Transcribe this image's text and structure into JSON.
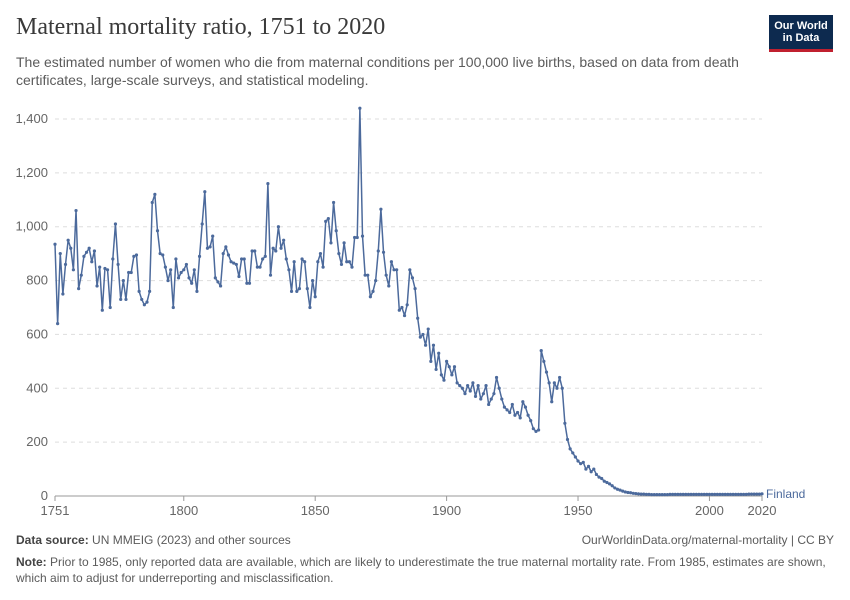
{
  "header": {
    "title": "Maternal mortality ratio, 1751 to 2020",
    "subtitle": "The estimated number of women who die from maternal conditions per 100,000 live births, based on data from death certificates, large-scale surveys, and statistical modeling."
  },
  "logo": {
    "line1": "Our World",
    "line2": "in Data"
  },
  "footer": {
    "source_label": "Data source:",
    "source_text": " UN MMEIG (2023) and other sources",
    "credit": "OurWorldinData.org/maternal-mortality | CC BY",
    "note_label": "Note:",
    "note_text": " Prior to 1985, only reported data are available, which are likely to underestimate the true maternal mortality rate. From 1985, estimates are shown, which aim to adjust for underreporting and misclassification."
  },
  "colors": {
    "series": "#4c6a9c",
    "grid": "#dddddd",
    "axis": "#999999"
  },
  "chart_data": {
    "type": "line",
    "title": "Maternal mortality ratio, 1751 to 2020",
    "xlim": [
      1751,
      2020
    ],
    "ylim": [
      0,
      1400
    ],
    "x_ticks": [
      1751,
      1800,
      1850,
      1900,
      1950,
      2000,
      2020
    ],
    "x_tick_labels": [
      "1751",
      "1800",
      "1850",
      "1900",
      "1950",
      "2000",
      "2020"
    ],
    "y_ticks": [
      0,
      200,
      400,
      600,
      800,
      1000,
      1200,
      1400
    ],
    "y_tick_labels": [
      "0",
      "200",
      "400",
      "600",
      "800",
      "1,000",
      "1,200",
      "1,400"
    ],
    "grid": "horizontal dashed",
    "series": [
      {
        "name": "Finland",
        "color": "#4c6a9c",
        "points": [
          [
            1751,
            935
          ],
          [
            1752,
            640
          ],
          [
            1753,
            900
          ],
          [
            1754,
            750
          ],
          [
            1755,
            860
          ],
          [
            1756,
            950
          ],
          [
            1757,
            920
          ],
          [
            1758,
            840
          ],
          [
            1759,
            1060
          ],
          [
            1760,
            770
          ],
          [
            1761,
            820
          ],
          [
            1762,
            890
          ],
          [
            1763,
            905
          ],
          [
            1764,
            920
          ],
          [
            1765,
            870
          ],
          [
            1766,
            910
          ],
          [
            1767,
            780
          ],
          [
            1768,
            850
          ],
          [
            1769,
            690
          ],
          [
            1770,
            845
          ],
          [
            1771,
            840
          ],
          [
            1772,
            700
          ],
          [
            1773,
            880
          ],
          [
            1774,
            1010
          ],
          [
            1775,
            860
          ],
          [
            1776,
            730
          ],
          [
            1777,
            800
          ],
          [
            1778,
            730
          ],
          [
            1779,
            830
          ],
          [
            1780,
            830
          ],
          [
            1781,
            890
          ],
          [
            1782,
            895
          ],
          [
            1783,
            760
          ],
          [
            1784,
            730
          ],
          [
            1785,
            710
          ],
          [
            1786,
            720
          ],
          [
            1787,
            760
          ],
          [
            1788,
            1090
          ],
          [
            1789,
            1120
          ],
          [
            1790,
            985
          ],
          [
            1791,
            900
          ],
          [
            1792,
            895
          ],
          [
            1793,
            850
          ],
          [
            1794,
            800
          ],
          [
            1795,
            840
          ],
          [
            1796,
            700
          ],
          [
            1797,
            880
          ],
          [
            1798,
            810
          ],
          [
            1799,
            830
          ],
          [
            1800,
            840
          ],
          [
            1801,
            860
          ],
          [
            1802,
            810
          ],
          [
            1803,
            790
          ],
          [
            1804,
            840
          ],
          [
            1805,
            760
          ],
          [
            1806,
            890
          ],
          [
            1807,
            1010
          ],
          [
            1808,
            1130
          ],
          [
            1809,
            920
          ],
          [
            1810,
            925
          ],
          [
            1811,
            965
          ],
          [
            1812,
            810
          ],
          [
            1813,
            795
          ],
          [
            1814,
            780
          ],
          [
            1815,
            900
          ],
          [
            1816,
            925
          ],
          [
            1817,
            895
          ],
          [
            1818,
            870
          ],
          [
            1819,
            865
          ],
          [
            1820,
            860
          ],
          [
            1821,
            815
          ],
          [
            1822,
            880
          ],
          [
            1823,
            880
          ],
          [
            1824,
            790
          ],
          [
            1825,
            790
          ],
          [
            1826,
            910
          ],
          [
            1827,
            910
          ],
          [
            1828,
            850
          ],
          [
            1829,
            850
          ],
          [
            1830,
            880
          ],
          [
            1831,
            890
          ],
          [
            1832,
            1160
          ],
          [
            1833,
            820
          ],
          [
            1834,
            920
          ],
          [
            1835,
            910
          ],
          [
            1836,
            1000
          ],
          [
            1837,
            920
          ],
          [
            1838,
            950
          ],
          [
            1839,
            880
          ],
          [
            1840,
            840
          ],
          [
            1841,
            760
          ],
          [
            1842,
            870
          ],
          [
            1843,
            760
          ],
          [
            1844,
            770
          ],
          [
            1845,
            880
          ],
          [
            1846,
            870
          ],
          [
            1847,
            770
          ],
          [
            1848,
            700
          ],
          [
            1849,
            800
          ],
          [
            1850,
            740
          ],
          [
            1851,
            870
          ],
          [
            1852,
            900
          ],
          [
            1853,
            850
          ],
          [
            1854,
            1020
          ],
          [
            1855,
            1030
          ],
          [
            1856,
            940
          ],
          [
            1857,
            1090
          ],
          [
            1858,
            985
          ],
          [
            1859,
            900
          ],
          [
            1860,
            860
          ],
          [
            1861,
            940
          ],
          [
            1862,
            870
          ],
          [
            1863,
            870
          ],
          [
            1864,
            850
          ],
          [
            1865,
            960
          ],
          [
            1866,
            960
          ],
          [
            1867,
            1440
          ],
          [
            1868,
            965
          ],
          [
            1869,
            820
          ],
          [
            1870,
            820
          ],
          [
            1871,
            740
          ],
          [
            1872,
            760
          ],
          [
            1873,
            800
          ],
          [
            1874,
            910
          ],
          [
            1875,
            1065
          ],
          [
            1876,
            905
          ],
          [
            1877,
            820
          ],
          [
            1878,
            780
          ],
          [
            1879,
            870
          ],
          [
            1880,
            840
          ],
          [
            1881,
            840
          ],
          [
            1882,
            690
          ],
          [
            1883,
            700
          ],
          [
            1884,
            670
          ],
          [
            1885,
            710
          ],
          [
            1886,
            840
          ],
          [
            1887,
            810
          ],
          [
            1888,
            770
          ],
          [
            1889,
            660
          ],
          [
            1890,
            590
          ],
          [
            1891,
            600
          ],
          [
            1892,
            560
          ],
          [
            1893,
            620
          ],
          [
            1894,
            500
          ],
          [
            1895,
            560
          ],
          [
            1896,
            470
          ],
          [
            1897,
            530
          ],
          [
            1898,
            450
          ],
          [
            1899,
            430
          ],
          [
            1900,
            500
          ],
          [
            1901,
            480
          ],
          [
            1902,
            450
          ],
          [
            1903,
            480
          ],
          [
            1904,
            420
          ],
          [
            1905,
            410
          ],
          [
            1906,
            400
          ],
          [
            1907,
            380
          ],
          [
            1908,
            410
          ],
          [
            1909,
            390
          ],
          [
            1910,
            420
          ],
          [
            1911,
            370
          ],
          [
            1912,
            410
          ],
          [
            1913,
            360
          ],
          [
            1914,
            380
          ],
          [
            1915,
            410
          ],
          [
            1916,
            340
          ],
          [
            1917,
            360
          ],
          [
            1918,
            380
          ],
          [
            1919,
            440
          ],
          [
            1920,
            400
          ],
          [
            1921,
            360
          ],
          [
            1922,
            330
          ],
          [
            1923,
            320
          ],
          [
            1924,
            310
          ],
          [
            1925,
            340
          ],
          [
            1926,
            300
          ],
          [
            1927,
            310
          ],
          [
            1928,
            290
          ],
          [
            1929,
            350
          ],
          [
            1930,
            330
          ],
          [
            1931,
            300
          ],
          [
            1932,
            280
          ],
          [
            1933,
            250
          ],
          [
            1934,
            240
          ],
          [
            1935,
            245
          ],
          [
            1936,
            540
          ],
          [
            1937,
            500
          ],
          [
            1938,
            460
          ],
          [
            1939,
            420
          ],
          [
            1940,
            350
          ],
          [
            1941,
            420
          ],
          [
            1942,
            400
          ],
          [
            1943,
            440
          ],
          [
            1944,
            400
          ],
          [
            1945,
            270
          ],
          [
            1946,
            210
          ],
          [
            1947,
            175
          ],
          [
            1948,
            160
          ],
          [
            1949,
            145
          ],
          [
            1950,
            130
          ],
          [
            1951,
            120
          ],
          [
            1952,
            125
          ],
          [
            1953,
            100
          ],
          [
            1954,
            110
          ],
          [
            1955,
            90
          ],
          [
            1956,
            100
          ],
          [
            1957,
            80
          ],
          [
            1958,
            70
          ],
          [
            1959,
            65
          ],
          [
            1960,
            55
          ],
          [
            1961,
            50
          ],
          [
            1962,
            45
          ],
          [
            1963,
            38
          ],
          [
            1964,
            30
          ],
          [
            1965,
            25
          ],
          [
            1966,
            22
          ],
          [
            1967,
            18
          ],
          [
            1968,
            15
          ],
          [
            1969,
            13
          ],
          [
            1970,
            12
          ],
          [
            1971,
            10
          ],
          [
            1972,
            9
          ],
          [
            1973,
            8
          ],
          [
            1974,
            7
          ],
          [
            1975,
            7
          ],
          [
            1976,
            6
          ],
          [
            1977,
            6
          ],
          [
            1978,
            5
          ],
          [
            1979,
            5
          ],
          [
            1980,
            5
          ],
          [
            1981,
            5
          ],
          [
            1982,
            5
          ],
          [
            1983,
            5
          ],
          [
            1984,
            5
          ],
          [
            1985,
            6
          ],
          [
            1986,
            6
          ],
          [
            1987,
            6
          ],
          [
            1988,
            6
          ],
          [
            1989,
            6
          ],
          [
            1990,
            6
          ],
          [
            1991,
            6
          ],
          [
            1992,
            6
          ],
          [
            1993,
            6
          ],
          [
            1994,
            6
          ],
          [
            1995,
            6
          ],
          [
            1996,
            6
          ],
          [
            1997,
            6
          ],
          [
            1998,
            6
          ],
          [
            1999,
            6
          ],
          [
            2000,
            6
          ],
          [
            2001,
            6
          ],
          [
            2002,
            6
          ],
          [
            2003,
            6
          ],
          [
            2004,
            6
          ],
          [
            2005,
            6
          ],
          [
            2006,
            6
          ],
          [
            2007,
            6
          ],
          [
            2008,
            6
          ],
          [
            2009,
            6
          ],
          [
            2010,
            6
          ],
          [
            2011,
            6
          ],
          [
            2012,
            6
          ],
          [
            2013,
            6
          ],
          [
            2014,
            6
          ],
          [
            2015,
            7
          ],
          [
            2016,
            7
          ],
          [
            2017,
            7
          ],
          [
            2018,
            7
          ],
          [
            2019,
            7
          ],
          [
            2020,
            8
          ]
        ]
      }
    ]
  }
}
